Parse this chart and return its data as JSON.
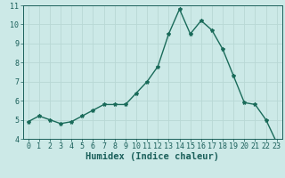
{
  "x": [
    0,
    1,
    2,
    3,
    4,
    5,
    6,
    7,
    8,
    9,
    10,
    11,
    12,
    13,
    14,
    15,
    16,
    17,
    18,
    19,
    20,
    21,
    22,
    23
  ],
  "y": [
    4.9,
    5.2,
    5.0,
    4.8,
    4.9,
    5.2,
    5.5,
    5.8,
    5.8,
    5.8,
    6.4,
    7.0,
    7.8,
    9.5,
    10.8,
    9.5,
    10.2,
    9.7,
    8.7,
    7.3,
    5.9,
    5.8,
    5.0,
    3.8
  ],
  "xlabel": "Humidex (Indice chaleur)",
  "ylim": [
    4,
    11
  ],
  "xlim_min": -0.5,
  "xlim_max": 23.5,
  "yticks": [
    4,
    5,
    6,
    7,
    8,
    9,
    10,
    11
  ],
  "xticks": [
    0,
    1,
    2,
    3,
    4,
    5,
    6,
    7,
    8,
    9,
    10,
    11,
    12,
    13,
    14,
    15,
    16,
    17,
    18,
    19,
    20,
    21,
    22,
    23
  ],
  "line_color": "#1a6b5a",
  "marker": "*",
  "marker_size": 3.0,
  "bg_color": "#cce9e7",
  "grid_color": "#b8d8d5",
  "axis_color": "#1a5f5a",
  "xlabel_fontsize": 7.5,
  "tick_fontsize": 6.0,
  "line_width": 1.0
}
